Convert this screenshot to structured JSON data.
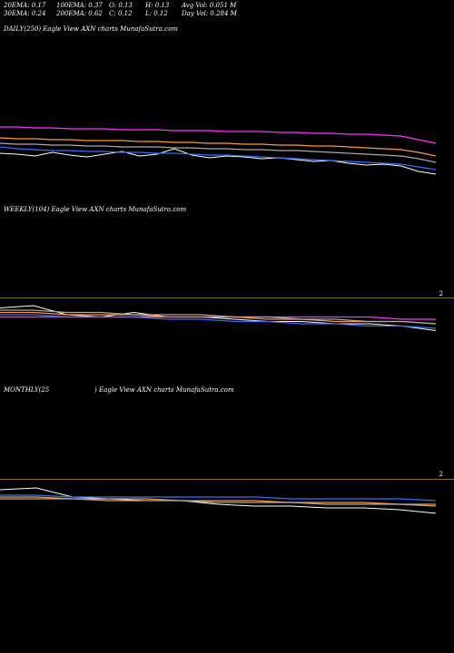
{
  "stats": {
    "ema20": "20EMA: 0.17",
    "ema30": "30EMA: 0.24",
    "ema100": "100EMA: 0.37",
    "ema200": "200EMA: 0.62",
    "open": "O: 0.13",
    "close": "C: 0.12",
    "high": "H: 0.13",
    "low": "L: 0.12",
    "avg_vol": "Avg Vol: 0.051 M",
    "day_vol": "Day Vol: 0.284 M"
  },
  "panels": [
    {
      "id": "daily",
      "label": "DAILY(250) Eagle View AXN charts MunafaSutra.com",
      "tick": ""
    },
    {
      "id": "weekly",
      "label": "WEEKLY(104) Eagle View AXN charts MunafaSutra.com",
      "tick": "2"
    },
    {
      "id": "monthly",
      "label_left": "MONTHLY(25",
      "label_right": ") Eagle View AXN charts MunafaSutra.com",
      "tick": "2"
    }
  ],
  "colors": {
    "price": "#ffffff",
    "ema_blue": "#3a6cff",
    "ema_pink": "#ff33ff",
    "ema_orange": "#ff9933",
    "ema_grey": "#aaaaaa",
    "divider": "#8a6a2a"
  },
  "chart_data": [
    {
      "type": "line",
      "name_panel": "daily",
      "x": [
        0,
        10,
        20,
        30,
        40,
        50,
        60,
        70,
        80,
        90,
        100,
        110,
        120,
        130,
        140,
        150,
        160,
        170,
        180,
        190,
        200,
        210,
        220,
        230,
        240,
        250
      ],
      "series": [
        {
          "key": "price",
          "values": [
            0.161,
            0.16,
            0.158,
            0.162,
            0.159,
            0.157,
            0.16,
            0.163,
            0.158,
            0.16,
            0.166,
            0.159,
            0.156,
            0.158,
            0.157,
            0.155,
            0.156,
            0.154,
            0.152,
            0.153,
            0.15,
            0.148,
            0.149,
            0.147,
            0.141,
            0.138
          ]
        },
        {
          "key": "ema_blue",
          "values": [
            0.168,
            0.166,
            0.165,
            0.164,
            0.164,
            0.163,
            0.163,
            0.162,
            0.162,
            0.161,
            0.161,
            0.16,
            0.159,
            0.159,
            0.158,
            0.157,
            0.156,
            0.155,
            0.154,
            0.153,
            0.152,
            0.151,
            0.15,
            0.149,
            0.146,
            0.143
          ]
        },
        {
          "key": "ema_pink",
          "values": [
            0.19,
            0.19,
            0.189,
            0.189,
            0.188,
            0.188,
            0.188,
            0.187,
            0.187,
            0.187,
            0.186,
            0.186,
            0.186,
            0.185,
            0.185,
            0.185,
            0.184,
            0.184,
            0.183,
            0.183,
            0.182,
            0.182,
            0.181,
            0.18,
            0.176,
            0.172
          ]
        },
        {
          "key": "ema_orange",
          "values": [
            0.178,
            0.177,
            0.177,
            0.176,
            0.176,
            0.175,
            0.175,
            0.175,
            0.174,
            0.174,
            0.173,
            0.173,
            0.172,
            0.172,
            0.171,
            0.171,
            0.17,
            0.17,
            0.169,
            0.169,
            0.168,
            0.167,
            0.166,
            0.165,
            0.162,
            0.158
          ]
        },
        {
          "key": "ema_grey",
          "values": [
            0.172,
            0.171,
            0.171,
            0.17,
            0.17,
            0.169,
            0.169,
            0.168,
            0.168,
            0.168,
            0.167,
            0.167,
            0.166,
            0.166,
            0.165,
            0.165,
            0.164,
            0.164,
            0.163,
            0.162,
            0.161,
            0.16,
            0.159,
            0.158,
            0.155,
            0.151
          ]
        }
      ],
      "ylim": [
        0,
        0.3
      ]
    },
    {
      "type": "line",
      "name_panel": "weekly",
      "x": [
        0,
        8,
        16,
        24,
        32,
        40,
        48,
        56,
        64,
        72,
        80,
        88,
        96,
        104
      ],
      "series": [
        {
          "key": "price",
          "values": [
            0.43,
            0.44,
            0.4,
            0.39,
            0.41,
            0.39,
            0.39,
            0.38,
            0.37,
            0.37,
            0.36,
            0.36,
            0.35,
            0.33
          ]
        },
        {
          "key": "ema_blue",
          "values": [
            0.4,
            0.4,
            0.39,
            0.39,
            0.39,
            0.38,
            0.38,
            0.37,
            0.37,
            0.36,
            0.36,
            0.35,
            0.35,
            0.34
          ]
        },
        {
          "key": "ema_pink",
          "values": [
            0.39,
            0.39,
            0.39,
            0.39,
            0.39,
            0.39,
            0.39,
            0.39,
            0.39,
            0.39,
            0.39,
            0.39,
            0.38,
            0.38
          ]
        },
        {
          "key": "ema_orange",
          "values": [
            0.41,
            0.41,
            0.4,
            0.4,
            0.4,
            0.39,
            0.39,
            0.39,
            0.38,
            0.38,
            0.37,
            0.37,
            0.37,
            0.36
          ]
        },
        {
          "key": "ema_grey",
          "values": [
            0.42,
            0.42,
            0.41,
            0.41,
            0.4,
            0.4,
            0.4,
            0.39,
            0.39,
            0.38,
            0.38,
            0.37,
            0.37,
            0.36
          ]
        }
      ],
      "ylim": [
        0,
        2
      ]
    },
    {
      "type": "line",
      "name_panel": "monthly",
      "x": [
        0,
        2,
        4,
        6,
        8,
        10,
        12,
        14,
        16,
        18,
        20,
        22,
        24
      ],
      "series": [
        {
          "key": "price",
          "values": [
            0.5,
            0.51,
            0.46,
            0.45,
            0.44,
            0.44,
            0.42,
            0.41,
            0.41,
            0.4,
            0.4,
            0.39,
            0.37
          ]
        },
        {
          "key": "ema_blue",
          "values": [
            0.47,
            0.47,
            0.46,
            0.46,
            0.46,
            0.46,
            0.46,
            0.46,
            0.45,
            0.45,
            0.45,
            0.45,
            0.44
          ]
        },
        {
          "key": "ema_orange",
          "values": [
            0.46,
            0.46,
            0.45,
            0.45,
            0.45,
            0.44,
            0.44,
            0.44,
            0.43,
            0.43,
            0.43,
            0.42,
            0.42
          ]
        },
        {
          "key": "ema_grey",
          "values": [
            0.45,
            0.45,
            0.45,
            0.44,
            0.44,
            0.44,
            0.43,
            0.43,
            0.43,
            0.42,
            0.42,
            0.42,
            0.41
          ]
        }
      ],
      "ylim": [
        0,
        2
      ]
    }
  ]
}
